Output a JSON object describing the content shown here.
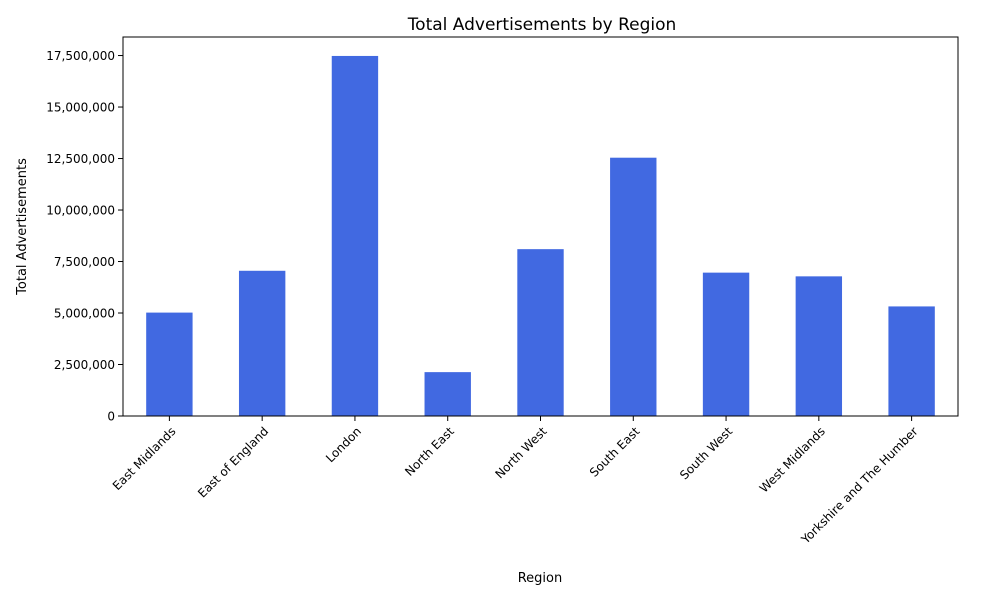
{
  "chart_data": {
    "type": "bar",
    "title": "Total Advertisements by Region",
    "xlabel": "Region",
    "ylabel": "Total Advertisements",
    "categories": [
      "East Midlands",
      "East of England",
      "London",
      "North East",
      "North West",
      "South East",
      "South West",
      "West Midlands",
      "Yorkshire and The Humber"
    ],
    "values": [
      5020000,
      7050000,
      17480000,
      2130000,
      8100000,
      12540000,
      6960000,
      6780000,
      5320000
    ],
    "ylim": [
      0,
      18400000
    ],
    "yticks": [
      0,
      2500000,
      5000000,
      7500000,
      10000000,
      12500000,
      15000000,
      17500000
    ],
    "ytick_labels": [
      "0",
      "2,500,000",
      "5,000,000",
      "7,500,000",
      "10,000,000",
      "12,500,000",
      "15,000,000",
      "17,500,000"
    ],
    "bar_color": "#4169e1",
    "grid": false,
    "legend": "none"
  }
}
